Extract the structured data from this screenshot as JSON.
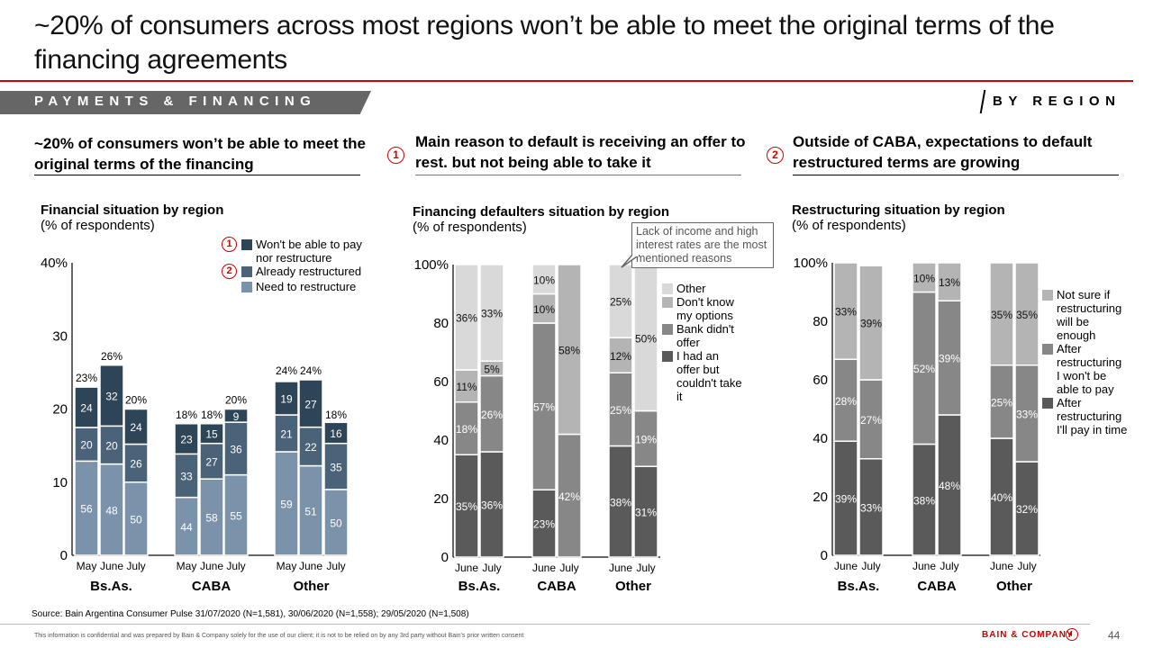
{
  "title": "~20% of consumers across most regions won’t be able to meet the original terms of the financing agreements",
  "section_label": "PAYMENTS & FINANCING",
  "section_tag": "BY REGION",
  "panels": [
    {
      "headline": "~20% of consumers won’t be able to meet the original terms of the financing",
      "number": ""
    },
    {
      "headline": "Main reason to default is receiving an offer to rest. but not being able to take it",
      "number": "1"
    },
    {
      "headline": "Outside of CABA, expectations to default restructured terms are growing",
      "number": "2"
    }
  ],
  "callout": "Lack of income and high interest rates are the most mentioned reasons",
  "source": "Source: Bain Argentina Consumer Pulse 31/07/2020 (N=1,581), 30/06/2020 (N=1,558); 29/05/2020 (N=1,508)",
  "disclaimer": "This information is confidential and was prepared by Bain & Company solely for the use of our client; it is not to be relied on by any 3rd party without Bain's prior written consent",
  "brand": "BAIN & COMPANY",
  "page_number": "44",
  "chart_data": [
    {
      "type": "bar",
      "stacked": true,
      "title": "Financial situation by region",
      "subtitle": "(% of respondents)",
      "ylim": [
        0,
        40
      ],
      "yticks": [
        "0",
        "10",
        "20",
        "30",
        "40%"
      ],
      "groups": [
        "Bs.As.",
        "CABA",
        "Other"
      ],
      "categories": [
        "May",
        "June",
        "July"
      ],
      "legend_position": "top-right",
      "series": [
        {
          "name": "Need to restructure",
          "color": "#7a92aa",
          "share_labels": [
            [
              56,
              48,
              50
            ],
            [
              44,
              58,
              55
            ],
            [
              59,
              51,
              50
            ]
          ]
        },
        {
          "name": "Already restructured",
          "color": "#4a6379",
          "marker": "2",
          "share_labels": [
            [
              20,
              20,
              26
            ],
            [
              33,
              27,
              36
            ],
            [
              21,
              22,
              35
            ]
          ]
        },
        {
          "name": "Won't be able to pay nor restructure",
          "color": "#2e4457",
          "marker": "1",
          "share_labels": [
            [
              24,
              32,
              24
            ],
            [
              23,
              15,
              9
            ],
            [
              19,
              27,
              16
            ]
          ]
        }
      ],
      "totals": [
        [
          23,
          26,
          20
        ],
        [
          18,
          18,
          20
        ],
        [
          24,
          24,
          18
        ]
      ],
      "total_labels": [
        [
          "23%",
          "26%",
          "20%"
        ],
        [
          "18%",
          "18%",
          "20%"
        ],
        [
          "24%",
          "24%",
          "18%"
        ]
      ]
    },
    {
      "type": "bar",
      "stacked": true,
      "title": "Financing defaulters situation by region",
      "subtitle": "(% of respondents)",
      "ylim": [
        0,
        100
      ],
      "yticks": [
        "0",
        "20",
        "40",
        "60",
        "80",
        "100%"
      ],
      "groups": [
        "Bs.As.",
        "CABA",
        "Other"
      ],
      "categories": [
        "June",
        "July"
      ],
      "legend_position": "right",
      "series": [
        {
          "name": "I had an offer but couldn't take it",
          "color": "#5a5a5a",
          "values": [
            [
              35,
              36
            ],
            [
              23,
              0
            ],
            [
              38,
              31
            ]
          ],
          "labels": [
            [
              "35%",
              "36%"
            ],
            [
              "23%",
              ""
            ],
            [
              "38%",
              "31%"
            ]
          ]
        },
        {
          "name": "Bank didn't offer",
          "color": "#878787",
          "values": [
            [
              18,
              26
            ],
            [
              57,
              42
            ],
            [
              25,
              19
            ]
          ],
          "labels": [
            [
              "18%",
              "26%"
            ],
            [
              "57%",
              "42%"
            ],
            [
              "25%",
              "19%"
            ]
          ]
        },
        {
          "name": "Don't know my options",
          "color": "#b4b4b4",
          "values": [
            [
              11,
              5
            ],
            [
              10,
              58
            ],
            [
              12,
              0
            ]
          ],
          "labels": [
            [
              "11%",
              "5%"
            ],
            [
              "10%",
              "58%"
            ],
            [
              "12%",
              ""
            ]
          ]
        },
        {
          "name": "Other",
          "color": "#d9d9d9",
          "values": [
            [
              36,
              33
            ],
            [
              10,
              0
            ],
            [
              25,
              50
            ]
          ],
          "labels": [
            [
              "36%",
              "33%"
            ],
            [
              "10%",
              ""
            ],
            [
              "25%",
              "50%"
            ]
          ]
        }
      ]
    },
    {
      "type": "bar",
      "stacked": true,
      "title": "Restructuring situation by region",
      "subtitle": "(% of respondents)",
      "ylim": [
        0,
        100
      ],
      "yticks": [
        "0",
        "20",
        "40",
        "60",
        "80",
        "100%"
      ],
      "groups": [
        "Bs.As.",
        "CABA",
        "Other"
      ],
      "categories": [
        "June",
        "July"
      ],
      "legend_position": "right",
      "series": [
        {
          "name": "After restructuring I'll pay in time",
          "color": "#5a5a5a",
          "values": [
            [
              39,
              33
            ],
            [
              38,
              48
            ],
            [
              40,
              32
            ]
          ],
          "labels": [
            [
              "39%",
              "33%"
            ],
            [
              "38%",
              "48%"
            ],
            [
              "40%",
              "32%"
            ]
          ]
        },
        {
          "name": "After restructuring I won't be able to pay",
          "color": "#878787",
          "values": [
            [
              28,
              27
            ],
            [
              52,
              39
            ],
            [
              25,
              33
            ]
          ],
          "labels": [
            [
              "28%",
              "27%"
            ],
            [
              "52%",
              "39%"
            ],
            [
              "25%",
              "33%"
            ]
          ]
        },
        {
          "name": "Not sure if restructuring will be enough",
          "color": "#b4b4b4",
          "values": [
            [
              33,
              39
            ],
            [
              10,
              13
            ],
            [
              35,
              35
            ]
          ],
          "labels": [
            [
              "33%",
              "39%"
            ],
            [
              "10%",
              "13%"
            ],
            [
              "35%",
              "35%"
            ]
          ]
        }
      ]
    }
  ]
}
